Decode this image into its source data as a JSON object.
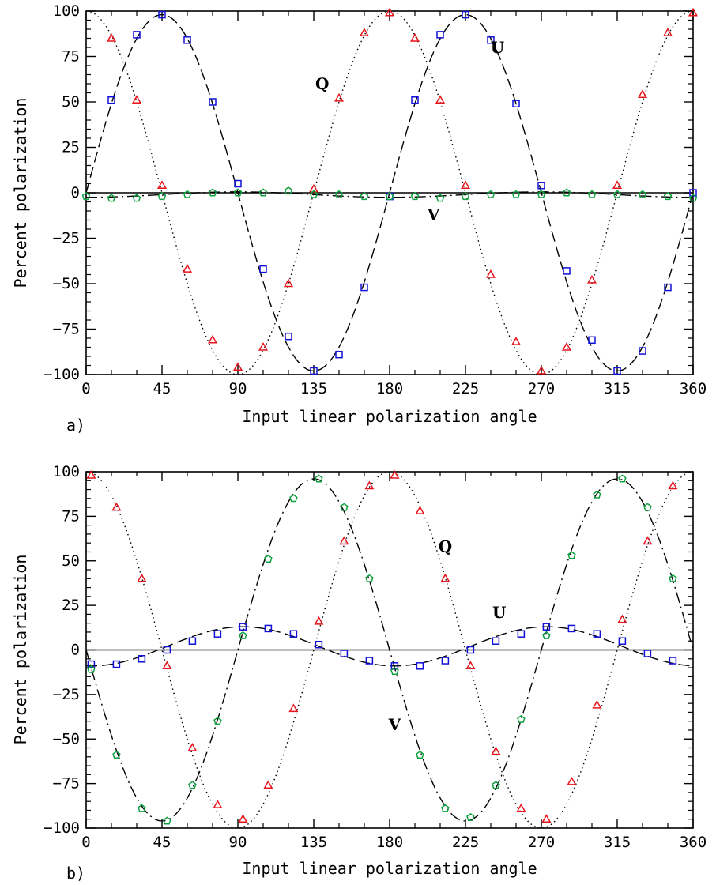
{
  "figure": {
    "panels": [
      {
        "panel_label": "a)",
        "xlabel": "Input linear polarization angle",
        "ylabel": "Percent polarization"
      },
      {
        "panel_label": "b)",
        "xlabel": "Input linear polarization angle",
        "ylabel": "Percent polarization"
      }
    ]
  },
  "chart_data": [
    {
      "type": "scatter",
      "panel": "a)",
      "xlabel": "Input linear polarization angle",
      "ylabel": "Percent polarization",
      "xlim": [
        0,
        360
      ],
      "ylim": [
        -100,
        100
      ],
      "xticks": [
        0,
        45,
        90,
        135,
        180,
        225,
        270,
        315,
        360
      ],
      "yticks": [
        -100,
        -75,
        -50,
        -25,
        0,
        25,
        50,
        75,
        100
      ],
      "zero_line": true,
      "series": [
        {
          "name": "Q",
          "marker": "triangle",
          "color": "#e8141c",
          "line_style": "dotted",
          "label_pos": [
            140,
            60
          ],
          "model": {
            "amplitude": 100,
            "phase": 0,
            "offset": 0,
            "type": "cos2x"
          },
          "x": [
            15,
            30,
            45,
            60,
            75,
            90,
            105,
            120,
            135,
            150,
            165,
            180,
            195,
            210,
            225,
            240,
            255,
            270,
            285,
            300,
            315,
            330,
            345,
            360
          ],
          "y": [
            85,
            51,
            4,
            -42,
            -81,
            -96,
            -85,
            -50,
            2,
            52,
            88,
            99,
            85,
            51,
            4,
            -45,
            -82,
            -98,
            -85,
            -48,
            4,
            54,
            88,
            99
          ]
        },
        {
          "name": "U",
          "marker": "square",
          "color": "#1010d8",
          "line_style": "dashed",
          "label_pos": [
            244,
            80
          ],
          "model": {
            "amplitude": 98,
            "phase": 45,
            "offset": 0,
            "type": "cos2x"
          },
          "x": [
            15,
            30,
            45,
            60,
            75,
            90,
            105,
            120,
            135,
            150,
            165,
            180,
            195,
            210,
            225,
            240,
            255,
            270,
            285,
            300,
            315,
            330,
            345,
            360
          ],
          "y": [
            51,
            87,
            98,
            84,
            50,
            5,
            -42,
            -79,
            -98,
            -89,
            -52,
            -2,
            51,
            87,
            98,
            84,
            49,
            4,
            -43,
            -81,
            -98,
            -87,
            -52,
            0
          ]
        },
        {
          "name": "V",
          "marker": "pentagon",
          "color": "#10a040",
          "line_style": "dashdot",
          "label_pos": [
            206,
            -12
          ],
          "model": {
            "amplitude": 1.5,
            "phase": 90,
            "offset": -1,
            "type": "cos2x"
          },
          "x": [
            0,
            15,
            30,
            45,
            60,
            75,
            90,
            105,
            120,
            135,
            150,
            165,
            180,
            195,
            210,
            225,
            240,
            255,
            270,
            285,
            300,
            315,
            330,
            345,
            360
          ],
          "y": [
            -2,
            -3,
            -3,
            -2,
            -1,
            0,
            0,
            0,
            1,
            -1,
            -1,
            -2,
            -2,
            -2,
            -3,
            -2,
            -1,
            -1,
            -1,
            0,
            -1,
            -1,
            -1,
            -2,
            -3
          ]
        }
      ]
    },
    {
      "type": "scatter",
      "panel": "b)",
      "xlabel": "Input linear polarization angle",
      "ylabel": "Percent polarization",
      "xlim": [
        0,
        360
      ],
      "ylim": [
        -100,
        100
      ],
      "xticks": [
        0,
        45,
        90,
        135,
        180,
        225,
        270,
        315,
        360
      ],
      "yticks": [
        -100,
        -75,
        -50,
        -25,
        0,
        25,
        50,
        75,
        100
      ],
      "zero_line": true,
      "series": [
        {
          "name": "Q",
          "marker": "triangle",
          "color": "#e8141c",
          "line_style": "dotted",
          "label_pos": [
            213,
            58
          ],
          "model": {
            "amplitude": 100,
            "phase": 0,
            "offset": 0,
            "type": "cos2x"
          },
          "x": [
            3,
            18,
            33,
            48,
            63,
            78,
            93,
            108,
            123,
            138,
            153,
            168,
            183,
            198,
            213,
            228,
            243,
            258,
            273,
            288,
            303,
            318,
            333,
            348
          ],
          "y": [
            98,
            80,
            40,
            -9,
            -55,
            -87,
            -95,
            -76,
            -33,
            16,
            61,
            92,
            98,
            78,
            40,
            -9,
            -57,
            -89,
            -95,
            -74,
            -31,
            17,
            61,
            92
          ]
        },
        {
          "name": "U",
          "marker": "square",
          "color": "#1010d8",
          "line_style": "dashed",
          "label_pos": [
            245,
            21
          ],
          "model": {
            "amplitude": 11,
            "phase": 93,
            "offset": 2,
            "type": "cos2x"
          },
          "x": [
            3,
            18,
            33,
            48,
            63,
            78,
            93,
            108,
            123,
            138,
            153,
            168,
            183,
            198,
            213,
            228,
            243,
            258,
            273,
            288,
            303,
            318,
            333,
            348
          ],
          "y": [
            -8,
            -8,
            -5,
            0,
            5,
            9,
            13,
            12,
            9,
            3,
            -2,
            -6,
            -9,
            -9,
            -6,
            0,
            5,
            9,
            13,
            12,
            9,
            5,
            -2,
            -6
          ]
        },
        {
          "name": "V",
          "marker": "pentagon",
          "color": "#10a040",
          "line_style": "dashdot",
          "label_pos": [
            183,
            -42
          ],
          "model": {
            "amplitude": 96,
            "phase": 135,
            "offset": 0,
            "type": "cos2x"
          },
          "x": [
            3,
            18,
            33,
            48,
            63,
            78,
            93,
            108,
            123,
            138,
            153,
            168,
            183,
            198,
            213,
            228,
            243,
            258,
            273,
            288,
            303,
            318,
            333,
            348
          ],
          "y": [
            -11,
            -59,
            -89,
            -96,
            -76,
            -40,
            8,
            51,
            85,
            96,
            80,
            40,
            -12,
            -59,
            -89,
            -94,
            -76,
            -39,
            8,
            53,
            87,
            96,
            80,
            40
          ]
        }
      ]
    }
  ]
}
